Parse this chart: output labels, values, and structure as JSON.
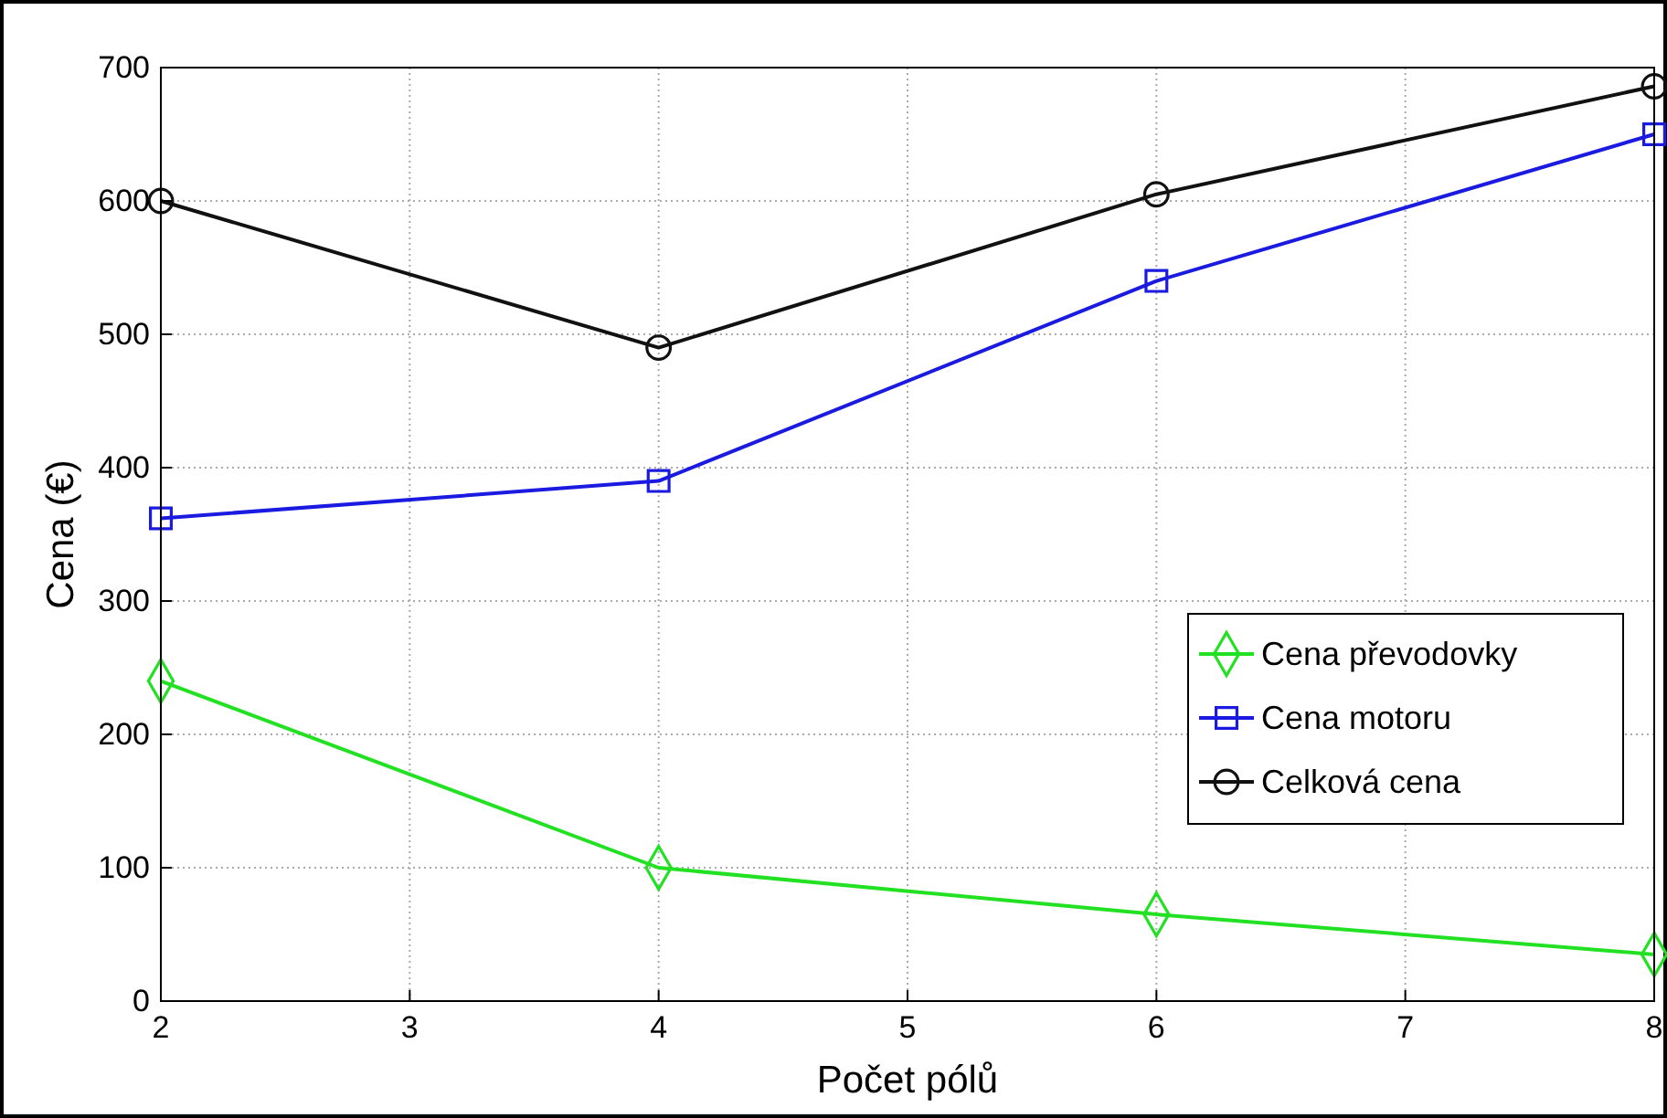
{
  "chart_data": {
    "type": "line",
    "xlabel": "Počet pólů",
    "ylabel": "Cena (€)",
    "x": [
      2,
      4,
      6,
      8
    ],
    "series": [
      {
        "name": "Cena převodovky",
        "color": "#22e022",
        "values": [
          240,
          100,
          65,
          35
        ],
        "marker": "diamond"
      },
      {
        "name": "Cena motoru",
        "color": "#1a1ae0",
        "values": [
          362,
          390,
          540,
          650
        ],
        "marker": "square"
      },
      {
        "name": "Celková cena",
        "color": "#111111",
        "values": [
          600,
          490,
          605,
          686
        ],
        "marker": "circle"
      }
    ],
    "xlim": [
      2,
      8
    ],
    "xticks": [
      2,
      3,
      4,
      5,
      6,
      7,
      8
    ],
    "ylim": [
      0,
      700
    ],
    "yticks": [
      0,
      100,
      200,
      300,
      400,
      500,
      600,
      700
    ],
    "grid": true,
    "legend": "right",
    "line_style": "solid"
  }
}
